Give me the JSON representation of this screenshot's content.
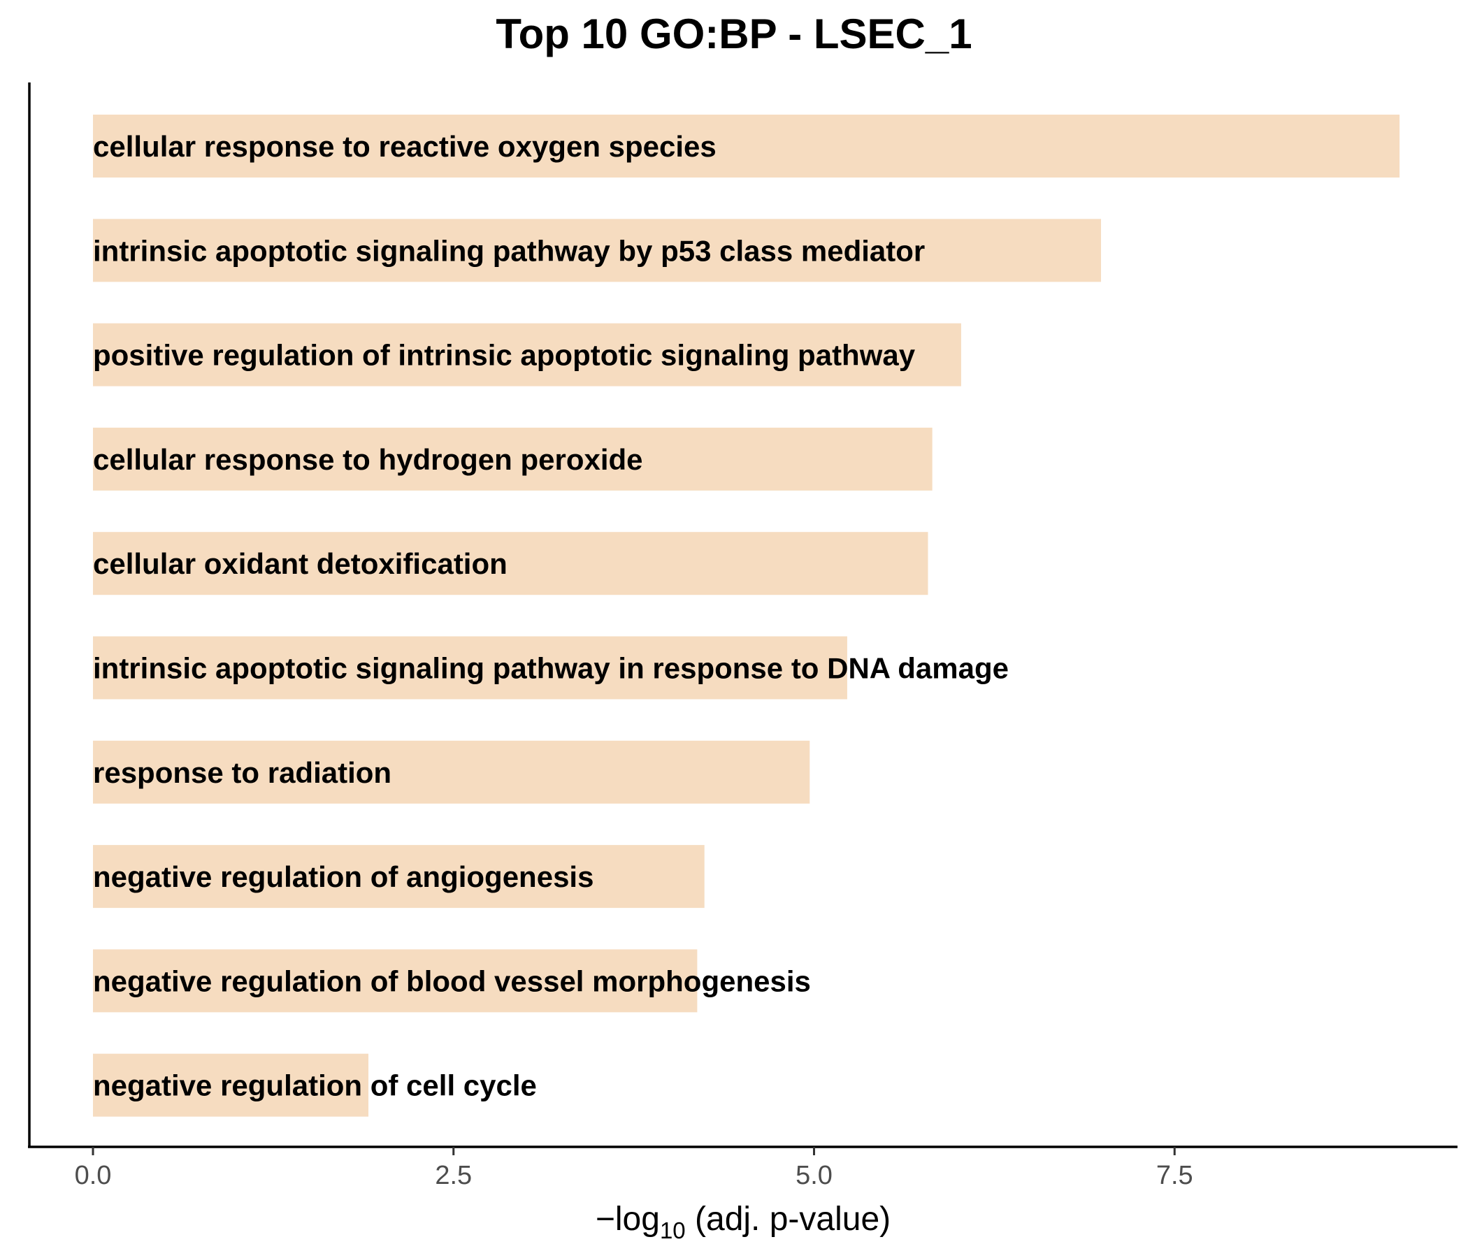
{
  "chart_data": {
    "type": "bar",
    "orientation": "horizontal",
    "title": "Top 10 GO:BP - LSEC_1",
    "xlabel": {
      "prefix": "−log",
      "subscript": "10",
      "suffix": " (adj. p-value)"
    },
    "ylabel": "",
    "bar_color": "#f6dcc0",
    "categories": [
      "cellular response to reactive oxygen species",
      "intrinsic apoptotic signaling pathway by p53 class mediator",
      "positive regulation of intrinsic apoptotic signaling pathway",
      "cellular response to hydrogen peroxide",
      "cellular oxidant detoxification",
      "intrinsic apoptotic signaling pathway in response to DNA damage",
      "response to radiation",
      "negative regulation of angiogenesis",
      "negative regulation of blood vessel morphogenesis",
      "negative regulation of cell cycle"
    ],
    "values": [
      9.06,
      6.99,
      6.02,
      5.82,
      5.79,
      5.23,
      4.97,
      4.24,
      4.19,
      1.91
    ],
    "x_ticks": [
      0.0,
      2.5,
      5.0,
      7.5
    ],
    "x_tick_labels": [
      "0.0",
      "2.5",
      "5.0",
      "7.5"
    ],
    "xlim": [
      -0.45,
      9.5
    ],
    "grid": false,
    "legend": "none"
  }
}
